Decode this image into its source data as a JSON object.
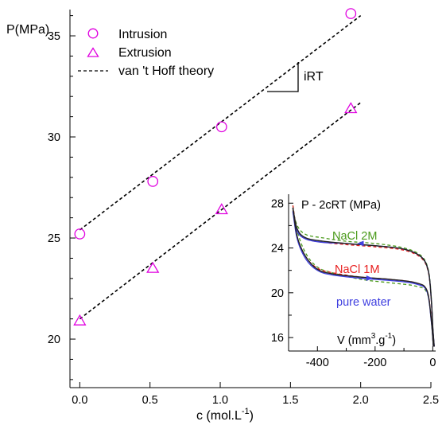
{
  "chart_data": [
    {
      "type": "scatter",
      "xlabel": "c (mol.L",
      "xlabel_superscript": "-1",
      "xlabel_suffix": ")",
      "ylabel": "P(MPa)",
      "xlim": [
        -0.07,
        2.5
      ],
      "ylim": [
        17.6,
        36.3
      ],
      "xticks": [
        0.0,
        0.5,
        1.0,
        1.5,
        2.0,
        2.5
      ],
      "xtick_labels": [
        "0.0",
        "0.5",
        "1.0",
        "1.5",
        "2.0",
        "2.5"
      ],
      "yticks": [
        20,
        25,
        30,
        35
      ],
      "ytick_labels": [
        "20",
        "25",
        "30",
        "35"
      ],
      "series": [
        {
          "name": "Intrusion",
          "marker": "circle",
          "color": "#e000e0",
          "x": [
            0.0,
            0.52,
            1.01,
            1.93
          ],
          "y": [
            25.2,
            27.8,
            30.5,
            36.1
          ]
        },
        {
          "name": "Extrusion",
          "marker": "triangle",
          "color": "#e000e0",
          "x": [
            0.0,
            0.52,
            1.01,
            1.93
          ],
          "y": [
            20.9,
            23.5,
            26.4,
            31.4
          ]
        },
        {
          "name": "van 't Hoff theory",
          "style": "dashed",
          "color": "#000000",
          "x": [
            0.0,
            2.0
          ],
          "y": [
            25.4,
            36.0
          ]
        },
        {
          "name": "van 't Hoff theory",
          "style": "dashed",
          "color": "#000000",
          "x": [
            0.0,
            2.0
          ],
          "y": [
            21.0,
            31.7
          ],
          "legend": false
        }
      ],
      "slope_annotation": "iRT",
      "legend_position": "top-left",
      "grid": false
    },
    {
      "type": "line",
      "title": "P - 2cRT  (MPa)",
      "xlabel": "V (mm",
      "xlabel_superscript_1": "3",
      "xlabel_middle": ".g",
      "xlabel_superscript_2": "-1",
      "xlabel_suffix": ")",
      "xlim": [
        -500,
        10
      ],
      "ylim": [
        14.8,
        28.8
      ],
      "xticks": [
        -400,
        -200,
        0
      ],
      "xtick_labels": [
        "-400",
        "-200",
        "0"
      ],
      "yticks": [
        16,
        20,
        24,
        28
      ],
      "ytick_labels": [
        "16",
        "20",
        "24",
        "28"
      ],
      "annotations": [
        {
          "text": "NaCl 2M",
          "color": "#4a9a1a"
        },
        {
          "text": "NaCl 1M",
          "color": "#e82020"
        },
        {
          "text": "pure water",
          "color": "#4040e0"
        }
      ],
      "series": [
        {
          "label": "NaCl 2M",
          "style": "dashed",
          "color": "#4a9a1a",
          "intrusion": [
            [
              -485,
              27.4
            ],
            [
              -470,
              26.0
            ],
            [
              -440,
              25.2
            ],
            [
              -380,
              24.9
            ],
            [
              -300,
              24.6
            ],
            [
              -200,
              24.4
            ],
            [
              -100,
              24.0
            ],
            [
              -40,
              23.3
            ],
            [
              -15,
              22.0
            ],
            [
              -5,
              19.5
            ],
            [
              0,
              17.0
            ],
            [
              5,
              15.2
            ]
          ],
          "extrusion": [
            [
              -485,
              27.8
            ],
            [
              -470,
              25.5
            ],
            [
              -440,
              23.5
            ],
            [
              -400,
              22.3
            ],
            [
              -350,
              21.8
            ],
            [
              -250,
              21.2
            ],
            [
              -150,
              20.9
            ],
            [
              -60,
              20.6
            ],
            [
              -20,
              20.0
            ],
            [
              -5,
              17.5
            ],
            [
              2,
              15.2
            ]
          ]
        },
        {
          "label": "NaCl 1M",
          "style": "dashed",
          "color": "#e82020",
          "intrusion": [
            [
              -485,
              27.8
            ],
            [
              -470,
              25.6
            ],
            [
              -440,
              24.8
            ],
            [
              -380,
              24.5
            ],
            [
              -300,
              24.3
            ],
            [
              -200,
              24.1
            ],
            [
              -100,
              23.8
            ],
            [
              -40,
              23.1
            ],
            [
              -15,
              21.8
            ],
            [
              -5,
              19.2
            ],
            [
              0,
              16.8
            ],
            [
              5,
              15.2
            ]
          ],
          "extrusion": [
            [
              -485,
              27.5
            ],
            [
              -470,
              25.0
            ],
            [
              -440,
              23.2
            ],
            [
              -400,
              22.2
            ],
            [
              -350,
              21.8
            ],
            [
              -250,
              21.4
            ],
            [
              -150,
              21.2
            ],
            [
              -60,
              20.9
            ],
            [
              -20,
              20.2
            ],
            [
              -5,
              17.6
            ],
            [
              2,
              15.2
            ]
          ]
        },
        {
          "label": "pure water",
          "style": "solid",
          "color": "#4040e0",
          "intrusion": [
            [
              -485,
              27.2
            ],
            [
              -470,
              25.5
            ],
            [
              -440,
              24.8
            ],
            [
              -380,
              24.5
            ],
            [
              -300,
              24.4
            ],
            [
              -200,
              24.2
            ],
            [
              -100,
              23.9
            ],
            [
              -40,
              23.2
            ],
            [
              -15,
              21.9
            ],
            [
              -5,
              19.3
            ],
            [
              0,
              16.9
            ],
            [
              5,
              15.2
            ]
          ],
          "extrusion": [
            [
              -485,
              27.3
            ],
            [
              -470,
              24.8
            ],
            [
              -440,
              23.0
            ],
            [
              -400,
              22.0
            ],
            [
              -350,
              21.6
            ],
            [
              -250,
              21.3
            ],
            [
              -150,
              21.1
            ],
            [
              -60,
              20.8
            ],
            [
              -20,
              20.1
            ],
            [
              -5,
              17.4
            ],
            [
              2,
              15.2
            ]
          ]
        },
        {
          "label": "black",
          "style": "solid",
          "color": "#222222",
          "intrusion": [
            [
              -485,
              27.6
            ],
            [
              -470,
              25.7
            ],
            [
              -440,
              24.9
            ],
            [
              -380,
              24.6
            ],
            [
              -300,
              24.4
            ],
            [
              -200,
              24.2
            ],
            [
              -100,
              23.9
            ],
            [
              -40,
              23.2
            ],
            [
              -15,
              21.9
            ],
            [
              -5,
              19.3
            ],
            [
              0,
              16.9
            ],
            [
              5,
              15.2
            ]
          ],
          "extrusion": [
            [
              -485,
              27.6
            ],
            [
              -470,
              25.0
            ],
            [
              -440,
              23.2
            ],
            [
              -400,
              22.1
            ],
            [
              -350,
              21.7
            ],
            [
              -250,
              21.4
            ],
            [
              -150,
              21.2
            ],
            [
              -60,
              20.9
            ],
            [
              -20,
              20.2
            ],
            [
              -5,
              17.5
            ],
            [
              2,
              15.2
            ]
          ]
        }
      ],
      "arrows": [
        {
          "color": "#4040e0",
          "at": [
            -245,
            24.4
          ],
          "direction": "left"
        },
        {
          "color": "#4040e0",
          "at": [
            -225,
            21.3
          ],
          "direction": "right"
        }
      ]
    }
  ]
}
